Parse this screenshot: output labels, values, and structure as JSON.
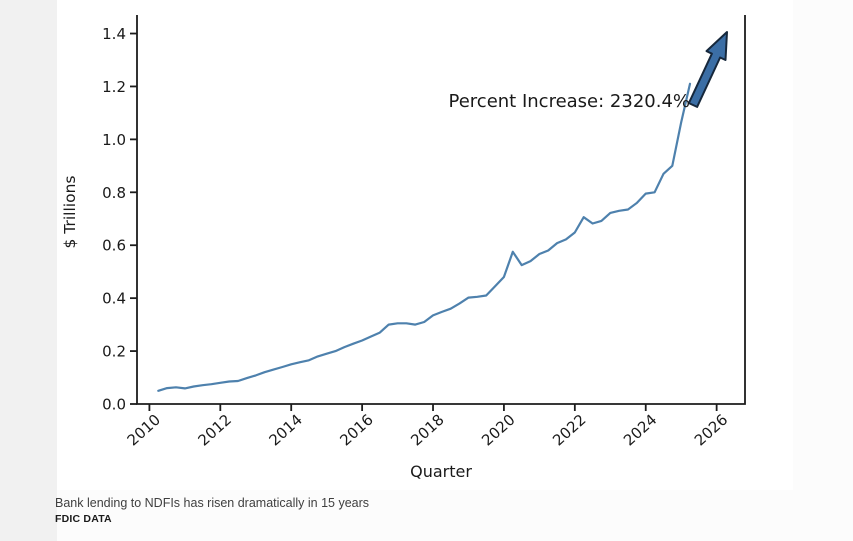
{
  "page": {
    "background_color": "#fcfcfc",
    "gutter_color": "#f1f1f1",
    "figure_background": "#ffffff"
  },
  "caption": {
    "headline": "Bank lending to NDFIs has risen dramatically in 15 years",
    "source": "FDIC DATA"
  },
  "chart_data": {
    "type": "line",
    "title": "",
    "xlabel": "Quarter",
    "ylabel": "$ Trillions",
    "annotation": "Percent Increase: 2320.4%",
    "percent_increase": 2320.4,
    "legend": "none",
    "grid": false,
    "x_tick_labels": [
      "2010",
      "2012",
      "2014",
      "2016",
      "2018",
      "2020",
      "2022",
      "2024",
      "2026"
    ],
    "y_tick_labels": [
      "0.0",
      "0.2",
      "0.4",
      "0.6",
      "0.8",
      "1.0",
      "1.2",
      "1.4"
    ],
    "xlim": [
      2009.65,
      2026.8
    ],
    "ylim": [
      0,
      1.47
    ],
    "line_color": "#4e81ad",
    "arrow_fill": "#3b6ea5",
    "arrow_outline": "#16283c",
    "spine_color": "#1c1c1c",
    "text_color": "#1a1a1a",
    "series": [
      {
        "name": "Bank lending to NDFIs",
        "quarters": [
          "2010Q2",
          "2010Q3",
          "2010Q4",
          "2011Q1",
          "2011Q2",
          "2011Q3",
          "2011Q4",
          "2012Q1",
          "2012Q2",
          "2012Q3",
          "2012Q4",
          "2013Q1",
          "2013Q2",
          "2013Q3",
          "2013Q4",
          "2014Q1",
          "2014Q2",
          "2014Q3",
          "2014Q4",
          "2015Q1",
          "2015Q2",
          "2015Q3",
          "2015Q4",
          "2016Q1",
          "2016Q2",
          "2016Q3",
          "2016Q4",
          "2017Q1",
          "2017Q2",
          "2017Q3",
          "2017Q4",
          "2018Q1",
          "2018Q2",
          "2018Q3",
          "2018Q4",
          "2019Q1",
          "2019Q2",
          "2019Q3",
          "2019Q4",
          "2020Q1",
          "2020Q2",
          "2020Q3",
          "2020Q4",
          "2021Q1",
          "2021Q2",
          "2021Q3",
          "2021Q4",
          "2022Q1",
          "2022Q2",
          "2022Q3",
          "2022Q4",
          "2023Q1",
          "2023Q2",
          "2023Q3",
          "2023Q4",
          "2024Q1",
          "2024Q2",
          "2024Q3",
          "2024Q4",
          "2025Q1",
          "2025Q2"
        ],
        "values": [
          0.05,
          0.06,
          0.063,
          0.059,
          0.066,
          0.071,
          0.075,
          0.08,
          0.085,
          0.087,
          0.098,
          0.108,
          0.12,
          0.13,
          0.14,
          0.15,
          0.158,
          0.165,
          0.18,
          0.19,
          0.2,
          0.215,
          0.228,
          0.24,
          0.255,
          0.27,
          0.3,
          0.305,
          0.305,
          0.3,
          0.31,
          0.335,
          0.348,
          0.36,
          0.38,
          0.402,
          0.405,
          0.41,
          0.445,
          0.48,
          0.575,
          0.525,
          0.54,
          0.567,
          0.58,
          0.608,
          0.622,
          0.648,
          0.706,
          0.682,
          0.692,
          0.722,
          0.73,
          0.735,
          0.76,
          0.795,
          0.8,
          0.87,
          0.9,
          1.065,
          1.21
        ]
      }
    ]
  }
}
